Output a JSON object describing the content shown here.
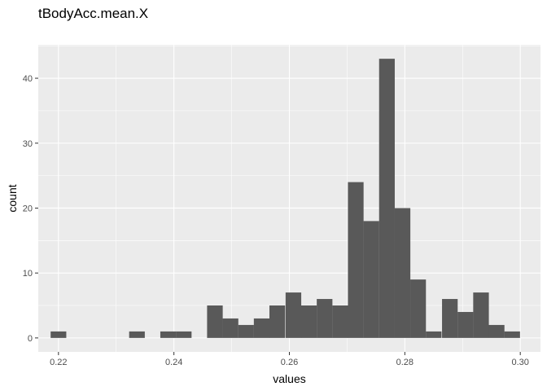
{
  "chart_data": {
    "type": "bar",
    "title": "tBodyAcc.mean.X",
    "xlabel": "values",
    "ylabel": "count",
    "xlim": [
      0.2165,
      0.3035
    ],
    "ylim": [
      -2.15,
      45.15
    ],
    "x_ticks": [
      0.22,
      0.24,
      0.26,
      0.28,
      0.3
    ],
    "y_ticks": [
      0,
      10,
      20,
      30,
      40
    ],
    "grid": true,
    "legend": "none",
    "bin_width": 0.00271,
    "bins": [
      {
        "x": 0.22,
        "count": 1
      },
      {
        "x": 0.2227,
        "count": 0
      },
      {
        "x": 0.2254,
        "count": 0
      },
      {
        "x": 0.2281,
        "count": 0
      },
      {
        "x": 0.2309,
        "count": 0
      },
      {
        "x": 0.2336,
        "count": 1
      },
      {
        "x": 0.2363,
        "count": 0
      },
      {
        "x": 0.239,
        "count": 1
      },
      {
        "x": 0.2417,
        "count": 1
      },
      {
        "x": 0.2444,
        "count": 0
      },
      {
        "x": 0.2471,
        "count": 5
      },
      {
        "x": 0.2498,
        "count": 3
      },
      {
        "x": 0.2525,
        "count": 2
      },
      {
        "x": 0.2552,
        "count": 3
      },
      {
        "x": 0.2579,
        "count": 5
      },
      {
        "x": 0.2607,
        "count": 7
      },
      {
        "x": 0.2634,
        "count": 5
      },
      {
        "x": 0.2661,
        "count": 6
      },
      {
        "x": 0.2688,
        "count": 5
      },
      {
        "x": 0.2715,
        "count": 24
      },
      {
        "x": 0.2742,
        "count": 18
      },
      {
        "x": 0.2769,
        "count": 43
      },
      {
        "x": 0.2796,
        "count": 20
      },
      {
        "x": 0.2823,
        "count": 9
      },
      {
        "x": 0.285,
        "count": 1
      },
      {
        "x": 0.2878,
        "count": 6
      },
      {
        "x": 0.2905,
        "count": 4
      },
      {
        "x": 0.2932,
        "count": 7
      },
      {
        "x": 0.2959,
        "count": 2
      },
      {
        "x": 0.2986,
        "count": 1
      }
    ],
    "colors": {
      "panel": "#ebebeb",
      "grid_major": "#ffffff",
      "bar": "#595959",
      "tick": "#333333"
    }
  }
}
